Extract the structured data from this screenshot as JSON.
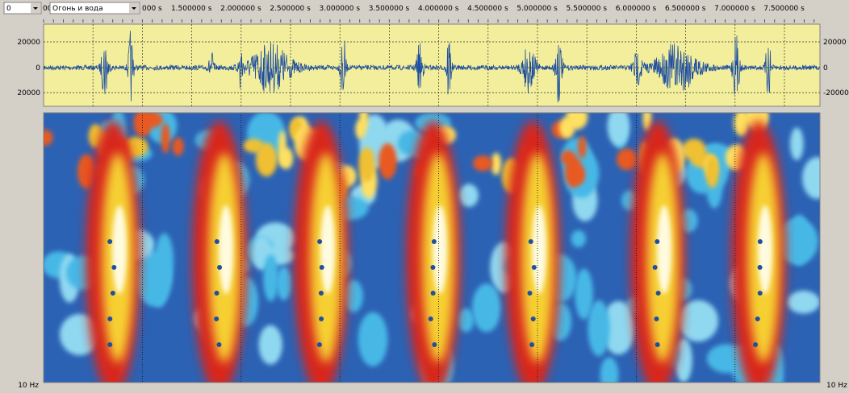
{
  "toolbar": {
    "channel": "0",
    "prefix": "00",
    "file": "Огонь и вода"
  },
  "time_axis": {
    "labels": [
      "000 s",
      "1.500000 s",
      "2.000000 s",
      "2.500000 s",
      "3.000000 s",
      "3.500000 s",
      "4.000000 s",
      "4.500000 s",
      "5.000000 s",
      "5.500000 s",
      "6.000000 s",
      "6.500000 s",
      "7.000000 s",
      "7.500000 s"
    ]
  },
  "waveform": {
    "left_labels": [
      "20000",
      "0",
      "20000"
    ],
    "right_labels": [
      "20000",
      "0",
      "-20000"
    ]
  },
  "spectrogram": {
    "left_label": "10 Hz",
    "right_label": "10 Hz"
  }
}
